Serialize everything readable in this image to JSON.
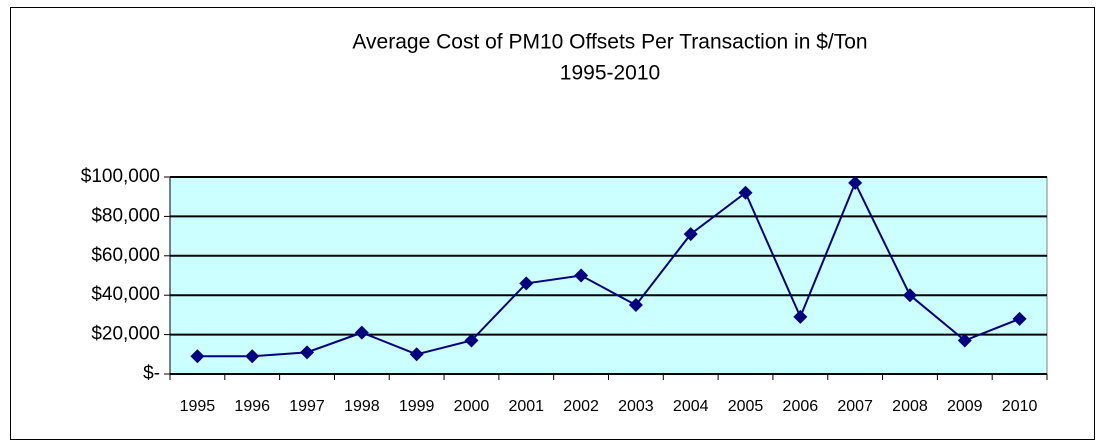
{
  "chart_data": {
    "type": "line",
    "title": "Average Cost of PM10 Offsets Per Transaction in $/Ton",
    "subtitle": "1995-2010",
    "categories": [
      "1995",
      "1996",
      "1997",
      "1998",
      "1999",
      "2000",
      "2001",
      "2002",
      "2003",
      "2004",
      "2005",
      "2006",
      "2007",
      "2008",
      "2009",
      "2010"
    ],
    "series": [
      {
        "name": "Average Cost",
        "color": "#000080",
        "values": [
          9000,
          9000,
          11000,
          21000,
          10000,
          17000,
          46000,
          50000,
          35000,
          71000,
          92000,
          29000,
          97000,
          40000,
          17000,
          28000
        ]
      }
    ],
    "ylim": [
      0,
      100000
    ],
    "yticks": [
      {
        "value": 0,
        "label": "$-"
      },
      {
        "value": 20000,
        "label": "$20,000"
      },
      {
        "value": 40000,
        "label": "$40,000"
      },
      {
        "value": 60000,
        "label": "$60,000"
      },
      {
        "value": 80000,
        "label": "$80,000"
      },
      {
        "value": 100000,
        "label": "$100,000"
      }
    ],
    "grid": true,
    "plot_background": "#ccffff"
  }
}
